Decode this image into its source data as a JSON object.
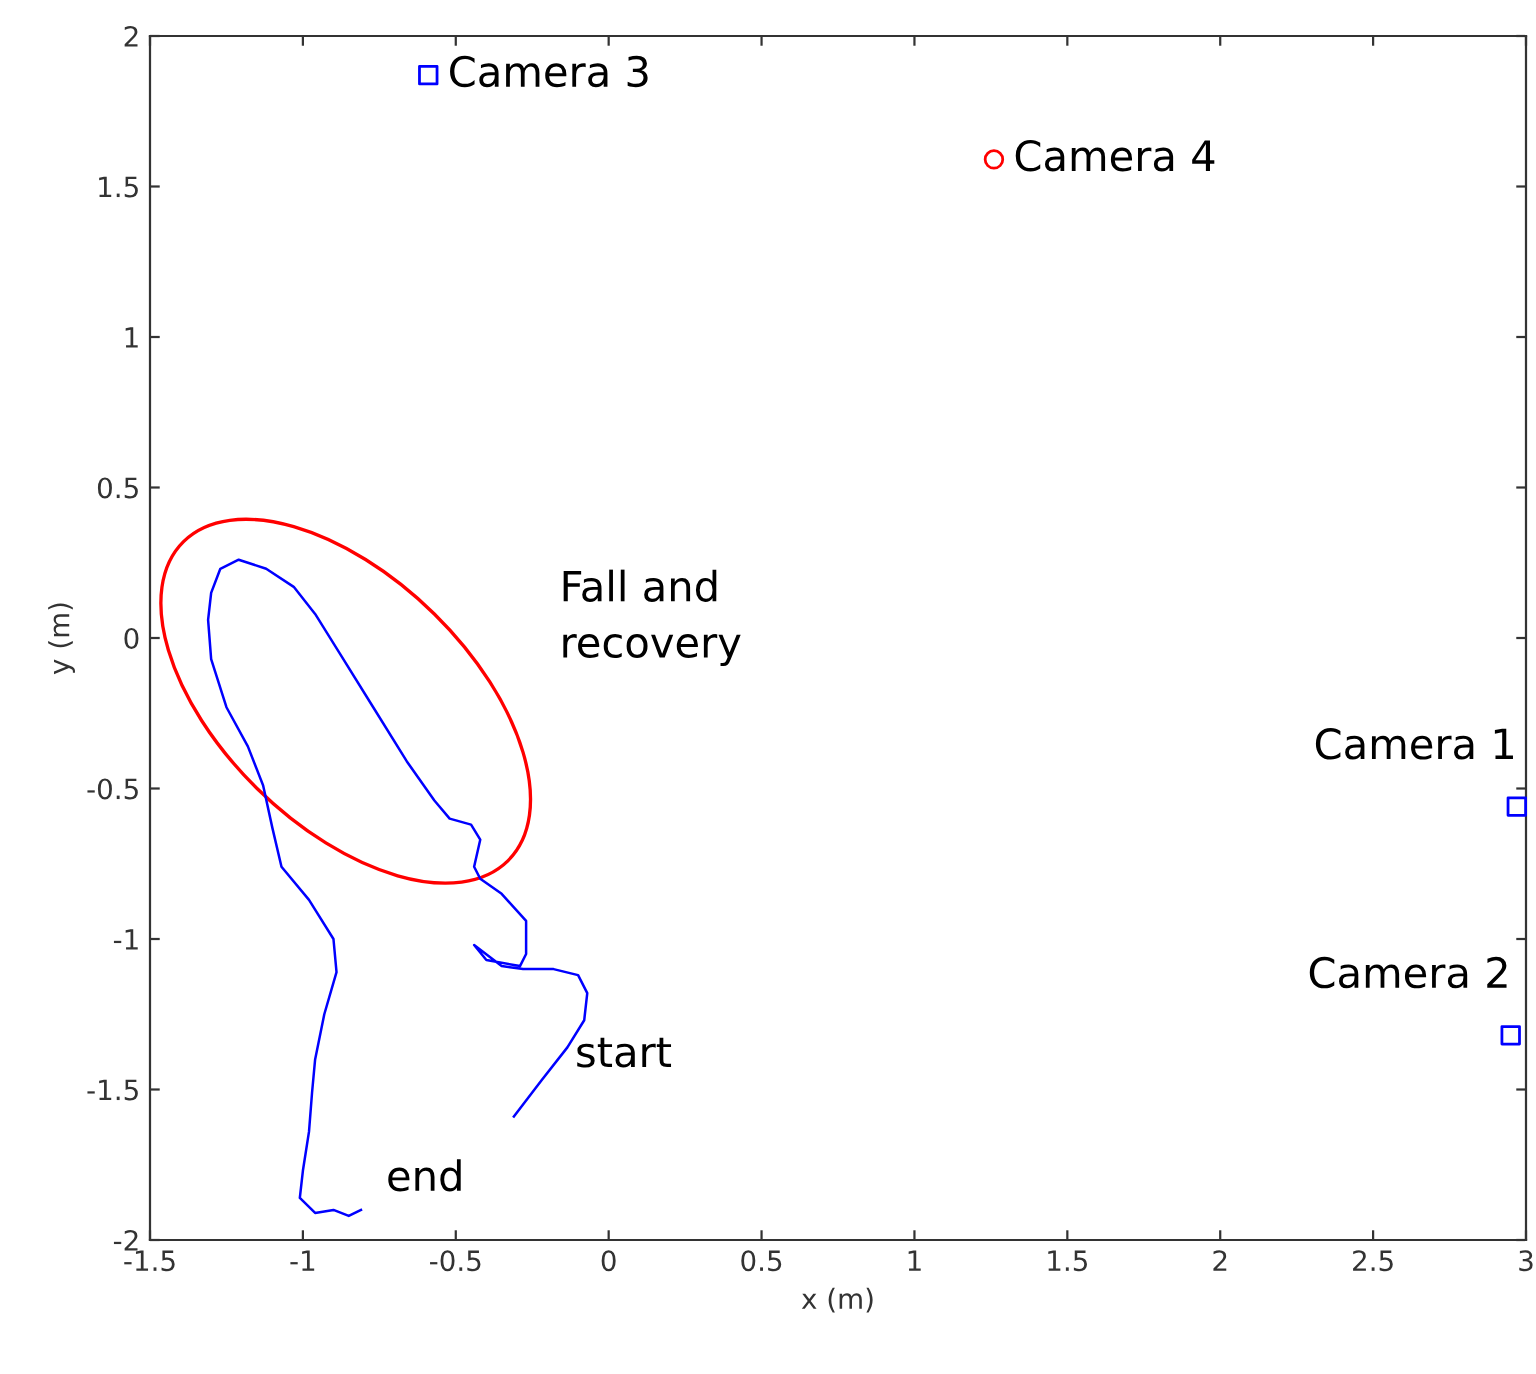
{
  "chart_data": {
    "type": "line",
    "xlabel": "x (m)",
    "ylabel": "y (m)",
    "xlim": [
      -1.5,
      3
    ],
    "xticks": [
      -1.5,
      -1,
      -0.5,
      0,
      0.5,
      1,
      1.5,
      2,
      2.5,
      3
    ],
    "ylim": [
      -2,
      2
    ],
    "yticks": [
      -2,
      -1.5,
      -1,
      -0.5,
      0,
      0.5,
      1,
      1.5,
      2
    ],
    "grid": false,
    "legend": false,
    "series": [
      {
        "color": "#0000ff",
        "marker": "none",
        "line_style": "solid",
        "x": [
          -0.31,
          -0.22,
          -0.135,
          -0.08,
          -0.07,
          -0.1,
          -0.18,
          -0.28,
          -0.35,
          -0.44,
          -0.4,
          -0.29,
          -0.27,
          -0.27,
          -0.35,
          -0.42,
          -0.44,
          -0.42,
          -0.45,
          -0.52,
          -0.57,
          -0.66,
          -0.77,
          -0.88,
          -0.96,
          -1.03,
          -1.12,
          -1.21,
          -1.27,
          -1.3,
          -1.31,
          -1.3,
          -1.25,
          -1.18,
          -1.13,
          -1.1,
          -1.07,
          -0.98,
          -0.9,
          -0.89,
          -0.93,
          -0.96,
          -0.97,
          -0.98,
          -1.0,
          -1.01,
          -0.96,
          -0.9,
          -0.85,
          -0.81
        ],
        "values": [
          -1.59,
          -1.47,
          -1.36,
          -1.27,
          -1.18,
          -1.12,
          -1.1,
          -1.1,
          -1.09,
          -1.02,
          -1.07,
          -1.09,
          -1.05,
          -0.94,
          -0.85,
          -0.8,
          -0.76,
          -0.67,
          -0.62,
          -0.6,
          -0.54,
          -0.41,
          -0.23,
          -0.05,
          0.08,
          0.17,
          0.23,
          0.26,
          0.23,
          0.15,
          0.06,
          -0.07,
          -0.23,
          -0.36,
          -0.49,
          -0.63,
          -0.76,
          -0.87,
          -1.0,
          -1.11,
          -1.25,
          -1.4,
          -1.51,
          -1.64,
          -1.77,
          -1.86,
          -1.91,
          -1.9,
          -1.92,
          -1.9
        ]
      },
      {
        "type": "scatter",
        "name": "Camera 1",
        "color": "#0000ff",
        "marker": "square",
        "x": [
          2.97
        ],
        "values": [
          -0.56
        ]
      },
      {
        "type": "scatter",
        "name": "Camera 2",
        "color": "#0000ff",
        "marker": "square",
        "x": [
          2.95
        ],
        "values": [
          -1.32
        ]
      },
      {
        "type": "scatter",
        "name": "Camera 3",
        "color": "#0000ff",
        "marker": "square",
        "x": [
          -0.59
        ],
        "values": [
          1.87
        ]
      },
      {
        "type": "scatter",
        "name": "Camera 4",
        "color": "#ff0000",
        "marker": "circle",
        "x": [
          1.26
        ],
        "values": [
          1.59
        ]
      }
    ],
    "annotations": [
      "Fall and\nrecovery",
      "start",
      "end"
    ]
  }
}
